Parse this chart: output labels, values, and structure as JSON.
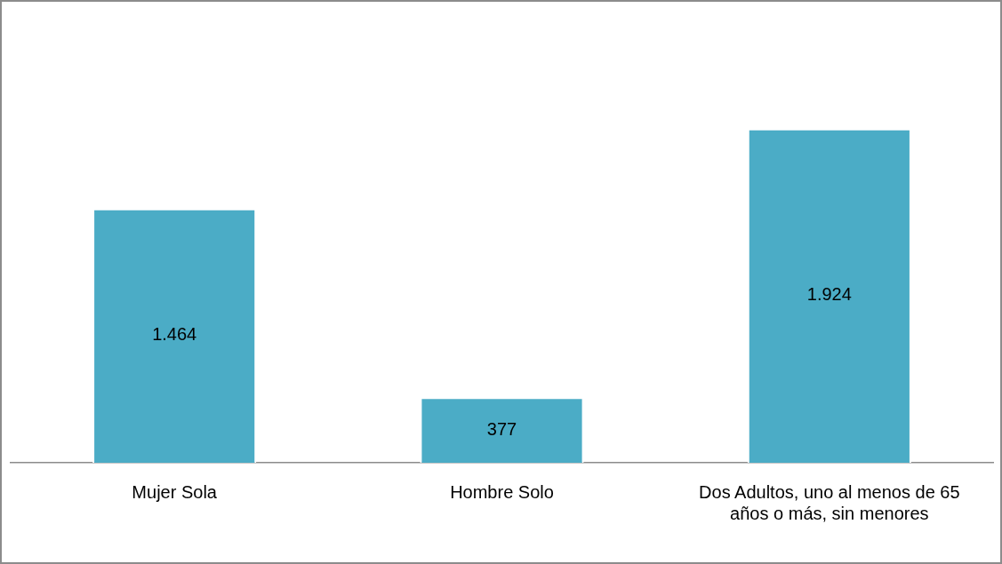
{
  "chart_data": {
    "type": "bar",
    "categories": [
      "Mujer Sola",
      "Hombre Solo",
      "Dos Adultos, uno al menos de 65 años o más, sin menores"
    ],
    "values": [
      1464,
      377,
      1924
    ],
    "value_labels": [
      "1.464",
      "377",
      "1.924"
    ],
    "color": "#4bacc6",
    "grid": false,
    "legend": false,
    "tick_labels": "x"
  }
}
